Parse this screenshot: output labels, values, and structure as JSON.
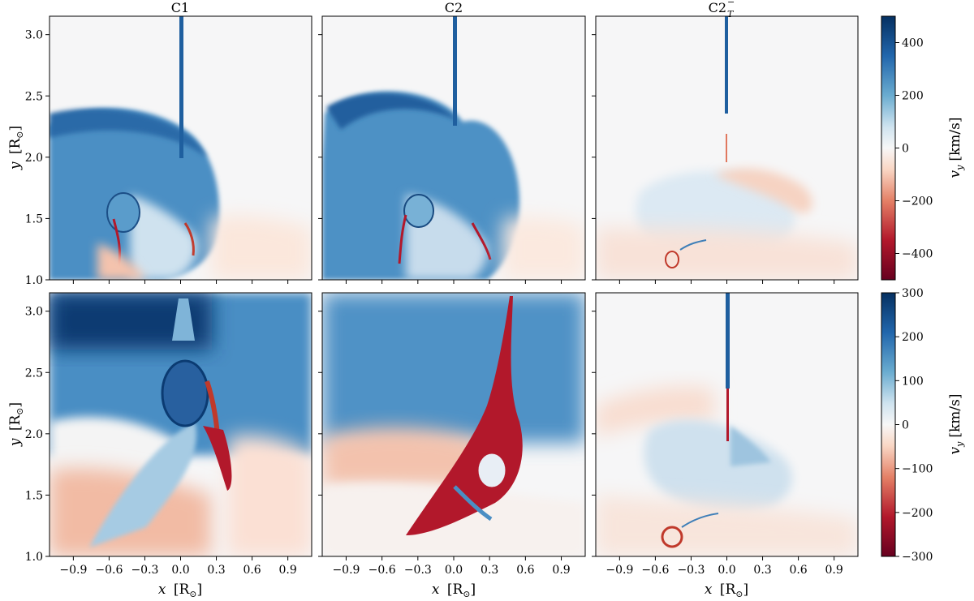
{
  "figure": {
    "column_titles": [
      "C1",
      "C2",
      "C2",
      "−",
      "T"
    ],
    "x_axis_label": {
      "var": "x",
      "unit": "[R",
      "sub": "⊙",
      "close": "]"
    },
    "y_axis_label": {
      "var": "y",
      "unit": "[R",
      "sub": "⊙",
      "close": "]"
    },
    "x_ticks": [
      "−0.9",
      "−0.6",
      "−0.3",
      "0.0",
      "0.3",
      "0.6",
      "0.9"
    ],
    "y_ticks": [
      "1.0",
      "1.5",
      "2.0",
      "2.5",
      "3.0"
    ],
    "colorbars": [
      {
        "label_var": "v",
        "label_sub": "y",
        "label_unit": "[km/s]",
        "ticks": [
          "400",
          "200",
          "0",
          "−200",
          "−400"
        ]
      },
      {
        "label_var": "v",
        "label_sub": "y",
        "label_unit": "[km/s]",
        "ticks": [
          "300",
          "200",
          "100",
          "0",
          "−100",
          "−200",
          "−300"
        ]
      }
    ]
  },
  "chart_data": {
    "type": "heatmap",
    "colormap": "RdBu (red = negative, blue = positive)",
    "x_range": [
      -1.1,
      1.1
    ],
    "y_range": [
      1.0,
      3.15
    ],
    "x_tick_values": [
      -0.9,
      -0.6,
      -0.3,
      0.0,
      0.3,
      0.6,
      0.9
    ],
    "y_tick_values": [
      1.0,
      1.5,
      2.0,
      2.5,
      3.0
    ],
    "rows": [
      {
        "colorbar_range": [
          -500,
          500
        ],
        "colorbar_tick_values": [
          400,
          200,
          0,
          -200,
          -400
        ]
      },
      {
        "colorbar_range": [
          -300,
          300
        ],
        "colorbar_tick_values": [
          300,
          200,
          100,
          0,
          -100,
          -200,
          -300
        ]
      }
    ],
    "panels": [
      {
        "row": 0,
        "col": 0,
        "title": "C1"
      },
      {
        "row": 0,
        "col": 1,
        "title": "C2"
      },
      {
        "row": 0,
        "col": 2,
        "title": "C2_T^-"
      },
      {
        "row": 1,
        "col": 0
      },
      {
        "row": 1,
        "col": 1
      },
      {
        "row": 1,
        "col": 2
      }
    ]
  }
}
